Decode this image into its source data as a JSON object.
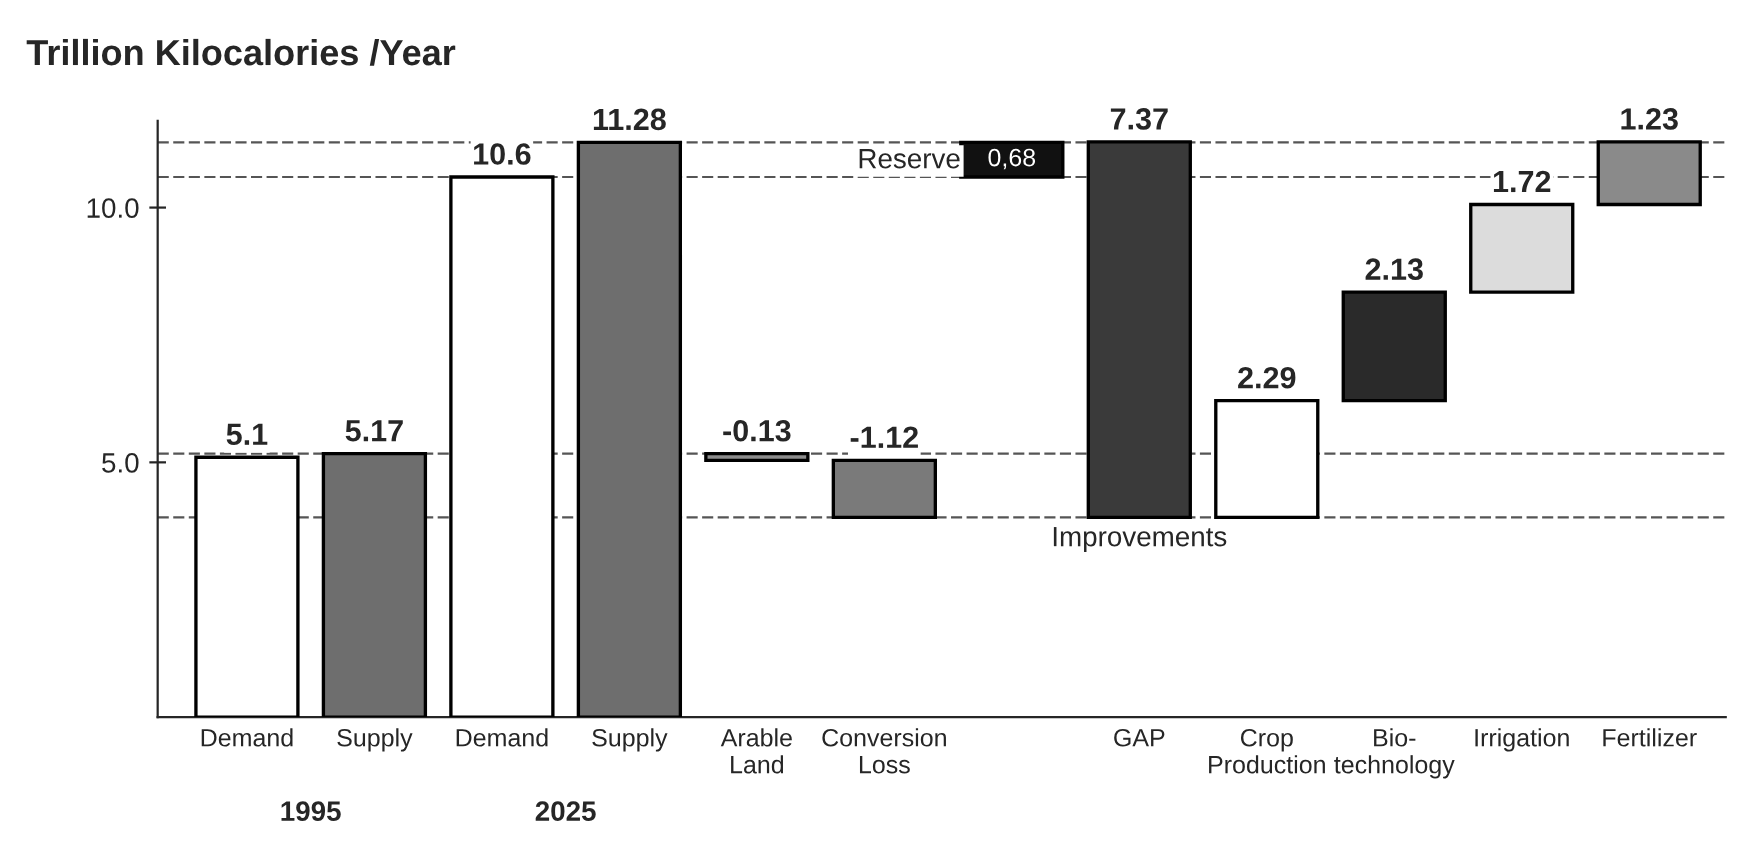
{
  "chart_data": {
    "type": "bar",
    "title": "Trillion Kilocalories /Year",
    "categories": [
      "Demand",
      "Supply",
      "Demand",
      "Supply",
      "Arable\nLand",
      "Conversion\nLoss",
      null,
      "GAP",
      "Crop\nProduction",
      "Bio-\ntechnology",
      "Irrigation",
      "Fertilizer"
    ],
    "values": [
      5.1,
      5.17,
      10.6,
      11.28,
      -0.13,
      -1.12,
      0.68,
      7.37,
      2.29,
      2.13,
      1.72,
      1.23
    ],
    "base": [
      0,
      0,
      0,
      0,
      5.17,
      5.04,
      10.6,
      3.92,
      3.92,
      6.21,
      8.34,
      10.06
    ],
    "colors": [
      "#ffffff",
      "#6e6e6e",
      "#ffffff",
      "#6e6e6e",
      "#8c8c8c",
      "#7a7a7a",
      "#111111",
      "#3a3a3a",
      "#ffffff",
      "#2a2a2a",
      "#dcdcdc",
      "#8a8a8a"
    ],
    "value_labels": [
      "5.1",
      "5.17",
      "10.6",
      "11.28",
      "-0.13",
      "-1.12",
      "0,68",
      "7.37",
      "2.29",
      "2.13",
      "1.72",
      "1.23"
    ],
    "ylim": [
      0,
      11.7
    ],
    "yticks": [
      {
        "value": 5,
        "label": "5.0"
      },
      {
        "value": 10,
        "label": "10.0"
      }
    ],
    "ref_lines": [
      {
        "axis": "y",
        "value": 11.28,
        "color": "#555555",
        "line_style": "dashed"
      },
      {
        "axis": "y",
        "value": 10.6,
        "color": "#555555",
        "line_style": "dashed"
      },
      {
        "axis": "y",
        "value": 5.17,
        "color": "#555555",
        "line_style": "dashed"
      },
      {
        "axis": "y",
        "value": 3.92,
        "color": "#555555",
        "line_style": "dashed"
      }
    ],
    "annotations": [
      "1995",
      "2025",
      "Reserve",
      "Improvements"
    ],
    "grid": false,
    "legend": false
  }
}
